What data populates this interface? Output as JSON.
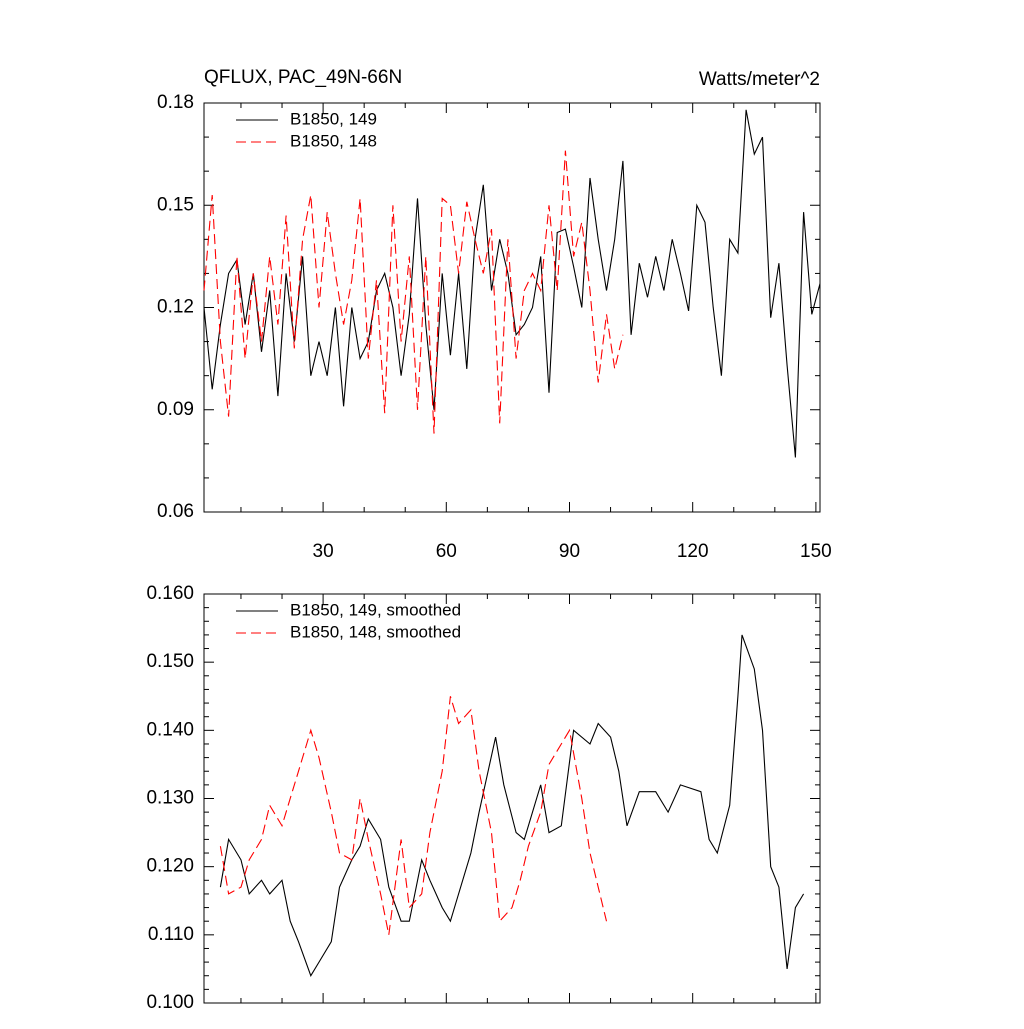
{
  "chart_data": [
    {
      "type": "line",
      "title": "QFLUX, PAC_49N-66N",
      "units": "Watts/meter^2",
      "xlim": [
        1,
        151
      ],
      "xticks": [
        30,
        60,
        90,
        120,
        150
      ],
      "show_xtick_labels": true,
      "ylim": [
        0.06,
        0.18
      ],
      "yticks": [
        0.06,
        0.09,
        0.12,
        0.15,
        0.18
      ],
      "series": [
        {
          "name": "B1850, 149",
          "color": "#000000",
          "line_style": "solid",
          "x": [
            1,
            3,
            5,
            7,
            9,
            11,
            13,
            15,
            17,
            19,
            21,
            23,
            25,
            27,
            29,
            31,
            33,
            35,
            37,
            39,
            41,
            43,
            45,
            47,
            49,
            51,
            53,
            55,
            57,
            59,
            61,
            63,
            65,
            67,
            69,
            71,
            73,
            75,
            77,
            79,
            81,
            83,
            85,
            87,
            89,
            91,
            93,
            95,
            97,
            99,
            101,
            103,
            105,
            107,
            109,
            111,
            113,
            115,
            117,
            119,
            121,
            123,
            125,
            127,
            129,
            131,
            133,
            135,
            137,
            139,
            141,
            143,
            145,
            147,
            149,
            151
          ],
          "values": [
            0.12,
            0.096,
            0.115,
            0.13,
            0.134,
            0.115,
            0.13,
            0.107,
            0.125,
            0.094,
            0.13,
            0.11,
            0.135,
            0.1,
            0.11,
            0.1,
            0.12,
            0.091,
            0.12,
            0.105,
            0.11,
            0.125,
            0.13,
            0.12,
            0.1,
            0.118,
            0.152,
            0.115,
            0.09,
            0.13,
            0.106,
            0.13,
            0.102,
            0.14,
            0.156,
            0.125,
            0.14,
            0.13,
            0.112,
            0.115,
            0.12,
            0.135,
            0.095,
            0.142,
            0.143,
            0.132,
            0.12,
            0.158,
            0.14,
            0.125,
            0.14,
            0.163,
            0.112,
            0.133,
            0.123,
            0.135,
            0.125,
            0.14,
            0.13,
            0.119,
            0.15,
            0.145,
            0.12,
            0.1,
            0.14,
            0.136,
            0.178,
            0.165,
            0.17,
            0.117,
            0.133,
            0.103,
            0.076,
            0.148,
            0.118,
            0.127
          ]
        },
        {
          "name": "B1850, 148",
          "color": "#ff0000",
          "line_style": "dashed",
          "x": [
            1,
            3,
            5,
            7,
            9,
            11,
            13,
            15,
            17,
            19,
            21,
            23,
            25,
            27,
            29,
            31,
            33,
            35,
            37,
            39,
            41,
            43,
            45,
            47,
            49,
            51,
            53,
            55,
            57,
            59,
            61,
            63,
            65,
            67,
            69,
            71,
            73,
            75,
            77,
            79,
            81,
            83,
            85,
            87,
            89,
            91,
            93,
            95,
            97,
            99,
            101,
            103
          ],
          "values": [
            0.125,
            0.153,
            0.11,
            0.088,
            0.135,
            0.105,
            0.13,
            0.11,
            0.135,
            0.115,
            0.147,
            0.108,
            0.14,
            0.153,
            0.12,
            0.148,
            0.13,
            0.115,
            0.128,
            0.152,
            0.105,
            0.128,
            0.089,
            0.15,
            0.11,
            0.135,
            0.09,
            0.135,
            0.083,
            0.152,
            0.15,
            0.13,
            0.151,
            0.14,
            0.13,
            0.143,
            0.086,
            0.14,
            0.105,
            0.125,
            0.13,
            0.125,
            0.15,
            0.125,
            0.166,
            0.135,
            0.145,
            0.125,
            0.098,
            0.118,
            0.102,
            0.112
          ]
        }
      ]
    },
    {
      "type": "line",
      "xlim": [
        1,
        151
      ],
      "xticks": [
        30,
        60,
        90,
        120,
        150
      ],
      "show_xtick_labels": false,
      "ylim": [
        0.1,
        0.16
      ],
      "yticks": [
        {
          "value": 0.1,
          "label": "0.100"
        },
        {
          "value": 0.11,
          "label": "0.110"
        },
        {
          "value": 0.12,
          "label": "0.120"
        },
        {
          "value": 0.13,
          "label": "0.130"
        },
        {
          "value": 0.14,
          "label": "0.140"
        },
        {
          "value": 0.15,
          "label": "0.150"
        },
        {
          "value": 0.16,
          "label": "0.160"
        }
      ],
      "series": [
        {
          "name": "B1850, 149, smoothed",
          "color": "#000000",
          "line_style": "solid",
          "x": [
            5,
            7,
            10,
            12,
            15,
            17,
            20,
            22,
            24,
            27,
            29,
            32,
            34,
            37,
            39,
            41,
            44,
            46,
            49,
            51,
            54,
            56,
            59,
            61,
            63,
            66,
            68,
            72,
            74,
            77,
            79,
            83,
            85,
            88,
            91,
            95,
            97,
            100,
            102,
            104,
            107,
            111,
            114,
            117,
            122,
            124,
            126,
            129,
            131,
            132,
            135,
            137,
            139,
            141,
            143,
            145,
            147
          ],
          "values": [
            0.117,
            0.124,
            0.121,
            0.116,
            0.118,
            0.116,
            0.118,
            0.112,
            0.109,
            0.104,
            0.106,
            0.109,
            0.117,
            0.121,
            0.123,
            0.127,
            0.124,
            0.117,
            0.112,
            0.112,
            0.121,
            0.118,
            0.114,
            0.112,
            0.116,
            0.122,
            0.128,
            0.139,
            0.132,
            0.125,
            0.124,
            0.132,
            0.125,
            0.126,
            0.14,
            0.138,
            0.141,
            0.139,
            0.134,
            0.126,
            0.131,
            0.131,
            0.128,
            0.132,
            0.131,
            0.124,
            0.122,
            0.129,
            0.145,
            0.154,
            0.149,
            0.14,
            0.12,
            0.117,
            0.105,
            0.114,
            0.116
          ]
        },
        {
          "name": "B1850, 148, smoothed",
          "color": "#ff0000",
          "line_style": "dashed",
          "x": [
            5,
            7,
            10,
            12,
            15,
            17,
            20,
            22,
            24,
            27,
            29,
            32,
            34,
            37,
            39,
            41,
            44,
            46,
            49,
            51,
            54,
            56,
            59,
            61,
            63,
            66,
            68,
            71,
            73,
            76,
            78,
            80,
            83,
            85,
            88,
            90,
            93,
            95,
            97,
            99
          ],
          "values": [
            0.123,
            0.116,
            0.117,
            0.121,
            0.124,
            0.129,
            0.126,
            0.13,
            0.134,
            0.14,
            0.136,
            0.128,
            0.122,
            0.121,
            0.13,
            0.124,
            0.116,
            0.11,
            0.124,
            0.114,
            0.116,
            0.125,
            0.134,
            0.145,
            0.141,
            0.143,
            0.134,
            0.125,
            0.112,
            0.114,
            0.118,
            0.123,
            0.128,
            0.135,
            0.138,
            0.14,
            0.13,
            0.122,
            0.117,
            0.112
          ]
        }
      ]
    }
  ]
}
